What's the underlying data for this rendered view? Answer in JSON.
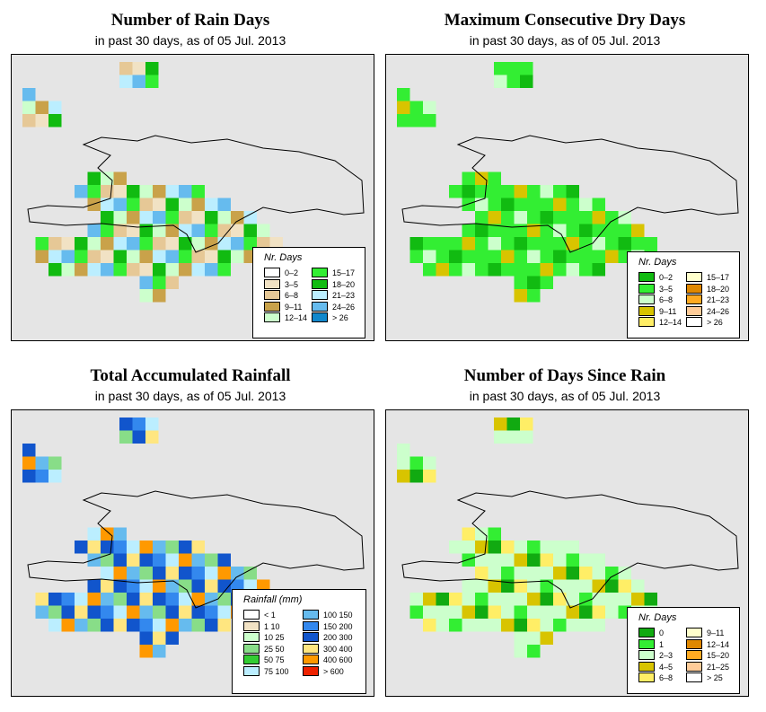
{
  "panels": [
    {
      "title": "Number of Rain Days",
      "subtitle": "in past 30 days, as of  05 Jul. 2013",
      "legend": {
        "title": "Nr. Days",
        "items": [
          {
            "label": "0–2",
            "color": "#ffffff"
          },
          {
            "label": "3–5",
            "color": "#f1e2c4"
          },
          {
            "label": "6–8",
            "color": "#e6c896"
          },
          {
            "label": "9–11",
            "color": "#c9a24a"
          },
          {
            "label": "12–14",
            "color": "#ccffcc"
          },
          {
            "label": "15–17",
            "color": "#33ee33"
          },
          {
            "label": "18–20",
            "color": "#11bb11"
          },
          {
            "label": "21–23",
            "color": "#bbeeff"
          },
          {
            "label": "24–26",
            "color": "#66bbee"
          },
          {
            "label": "> 26",
            "color": "#1188cc"
          }
        ]
      }
    },
    {
      "title": "Maximum Consecutive Dry Days",
      "subtitle": "in past 30 days, as of  05 Jul. 2013",
      "legend": {
        "title": "Nr. Days",
        "items": [
          {
            "label": "0–2",
            "color": "#11bb11"
          },
          {
            "label": "3–5",
            "color": "#33ee33"
          },
          {
            "label": "6–8",
            "color": "#ccffcc"
          },
          {
            "label": "9–11",
            "color": "#d8c400"
          },
          {
            "label": "12–14",
            "color": "#ffee66"
          },
          {
            "label": "15–17",
            "color": "#ffffcc"
          },
          {
            "label": "18–20",
            "color": "#e08800"
          },
          {
            "label": "21–23",
            "color": "#ffaa22"
          },
          {
            "label": "24–26",
            "color": "#ffcc99"
          },
          {
            "label": "> 26",
            "color": "#ffffff"
          }
        ]
      }
    },
    {
      "title": "Total Accumulated Rainfall",
      "subtitle": "in past 30 days, as of  05 Jul. 2013",
      "legend": {
        "title": "Rainfall (mm)",
        "items": [
          {
            "label": "< 1",
            "color": "#ffffff"
          },
          {
            "label": "1   10",
            "color": "#f1e2c4"
          },
          {
            "label": "10   25",
            "color": "#ccffcc"
          },
          {
            "label": "25   50",
            "color": "#88dd88"
          },
          {
            "label": "50   75",
            "color": "#33cc33"
          },
          {
            "label": "75   100",
            "color": "#bbeeff"
          },
          {
            "label": "100  150",
            "color": "#66bbee"
          },
          {
            "label": "150  200",
            "color": "#3388ee"
          },
          {
            "label": "200  300",
            "color": "#1155cc"
          },
          {
            "label": "300  400",
            "color": "#ffe680"
          },
          {
            "label": "400  600",
            "color": "#ff9900"
          },
          {
            "label": "> 600",
            "color": "#ee2200"
          }
        ]
      }
    },
    {
      "title": "Number of Days Since Rain",
      "subtitle": "in past 30 days, as of  05 Jul. 2013",
      "legend": {
        "title": "Nr. Days",
        "items": [
          {
            "label": "0",
            "color": "#11aa11"
          },
          {
            "label": "1",
            "color": "#33ee33"
          },
          {
            "label": "2–3",
            "color": "#ccffcc"
          },
          {
            "label": "4–5",
            "color": "#d8c400"
          },
          {
            "label": "6–8",
            "color": "#ffee66"
          },
          {
            "label": "9–11",
            "color": "#ffffcc"
          },
          {
            "label": "12–14",
            "color": "#e08800"
          },
          {
            "label": "15–20",
            "color": "#ffaa22"
          },
          {
            "label": "21–25",
            "color": "#ffcc99"
          },
          {
            "label": "> 25",
            "color": "#ffffff"
          }
        ]
      }
    }
  ],
  "colors": {
    "ocean_background": "#e5e5e5",
    "coastline": "#000000"
  }
}
